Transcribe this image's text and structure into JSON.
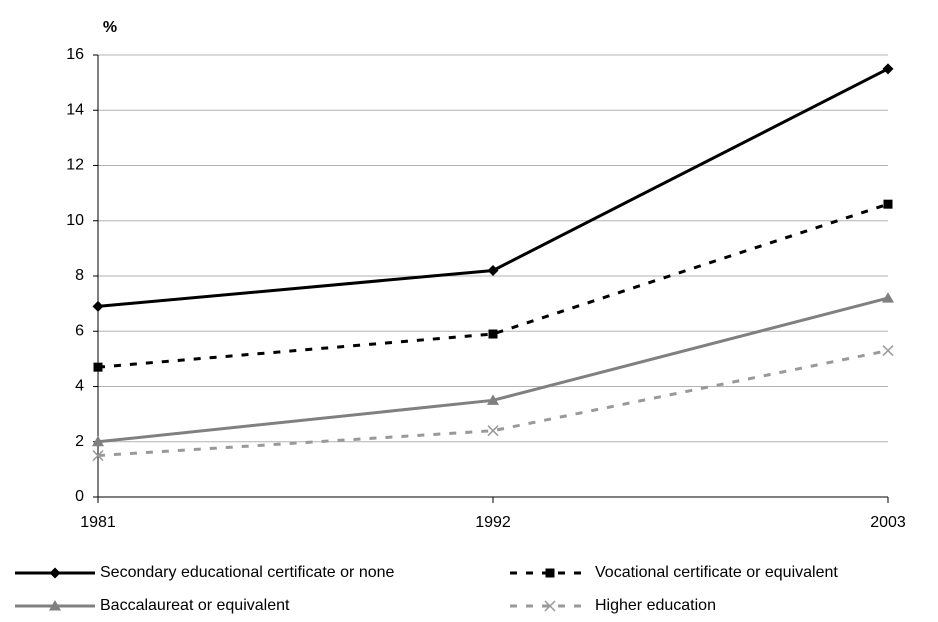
{
  "chart_data": {
    "type": "line",
    "y_label": "%",
    "categories": [
      "1981",
      "1992",
      "2003"
    ],
    "series": [
      {
        "name": "Secondary educational certificate or none",
        "color": "#000000",
        "dashed": false,
        "marker": "diamond",
        "values": [
          6.9,
          8.2,
          15.5
        ]
      },
      {
        "name": "Vocational certificate or equivalent",
        "color": "#000000",
        "dashed": true,
        "marker": "square",
        "values": [
          4.7,
          5.9,
          10.6
        ]
      },
      {
        "name": "Baccalaureat or equivalent",
        "color": "#808080",
        "dashed": false,
        "marker": "triangle",
        "values": [
          2.0,
          3.5,
          7.2
        ]
      },
      {
        "name": "Higher education",
        "color": "#999999",
        "dashed": true,
        "marker": "x",
        "values": [
          1.5,
          2.4,
          5.3
        ]
      }
    ],
    "ylim": [
      0,
      16
    ],
    "yticks": [
      0,
      2,
      4,
      6,
      8,
      10,
      12,
      14,
      16
    ],
    "grid": true
  }
}
